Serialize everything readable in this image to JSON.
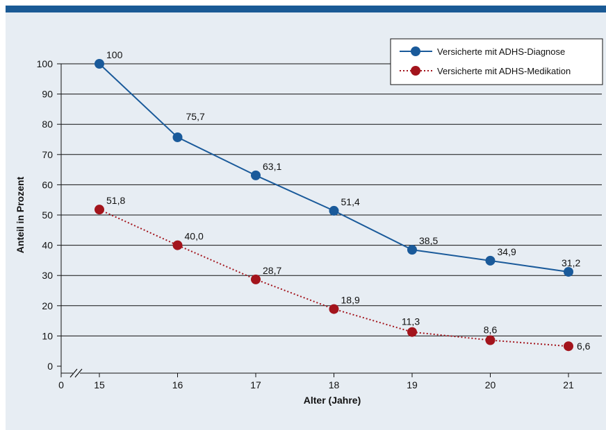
{
  "chart_data": {
    "type": "line",
    "title": "",
    "xlabel": "Alter (Jahre)",
    "ylabel": "Anteil in Prozent",
    "x": [
      15,
      16,
      17,
      18,
      19,
      20,
      21
    ],
    "x_tick_labels": [
      "0",
      "15",
      "16",
      "17",
      "18",
      "19",
      "20",
      "21"
    ],
    "x_axis_break": true,
    "y_ticks": [
      0,
      10,
      20,
      30,
      40,
      50,
      60,
      70,
      80,
      90,
      100
    ],
    "ylim": [
      0,
      100
    ],
    "grid": "horizontal",
    "legend_position": "top-right",
    "series": [
      {
        "name": "Versicherte mit ADHS-Diagnose",
        "color": "#1a5a9a",
        "line_style": "solid",
        "values": [
          100,
          75.7,
          63.1,
          51.4,
          38.5,
          34.9,
          31.2
        ],
        "value_labels": [
          "100",
          "75,7",
          "63,1",
          "51,4",
          "38,5",
          "34,9",
          "31,2"
        ]
      },
      {
        "name": "Versicherte mit ADHS-Medikation",
        "color": "#a3141c",
        "line_style": "dotted",
        "values": [
          51.8,
          40.0,
          28.7,
          18.9,
          11.3,
          8.6,
          6.6
        ],
        "value_labels": [
          "51,8",
          "40,0",
          "28,7",
          "18,9",
          "11,3",
          "8,6",
          "6,6"
        ]
      }
    ]
  }
}
